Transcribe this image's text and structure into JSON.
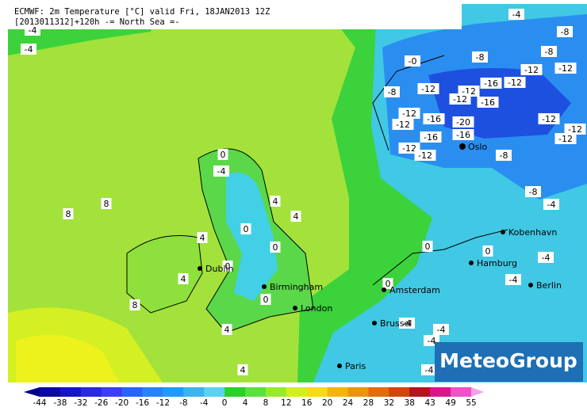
{
  "header": {
    "line1": "ECMWF: 2m Temperature [°C] valid Fri, 18JAN2013 12Z",
    "line2": "[2013011312]+120h  -= North Sea =-"
  },
  "logo": "MeteoGroup",
  "cities": [
    "Dublin",
    "Birmingham",
    "London",
    "Amsterdam",
    "Brussel",
    "Paris",
    "Hamburg",
    "Kobenhavn",
    "Berlin",
    "Oslo"
  ],
  "contour_labels": [
    "-4",
    "-4",
    "8",
    "8",
    "8",
    "0",
    "-4",
    "4",
    "4",
    "4",
    "0",
    "0",
    "0",
    "4",
    "0",
    "4",
    "4",
    "0",
    "0",
    "0",
    "-4",
    "-8",
    "-8",
    "-0",
    "-8",
    "-12",
    "-12",
    "-16",
    "-12",
    "-8",
    "-12",
    "-12",
    "-16",
    "-12",
    "-12",
    "-12",
    "-16",
    "-20",
    "-16",
    "-16",
    "-12",
    "-12",
    "-8",
    "-12",
    "-12",
    "-12",
    "-8",
    "-4",
    "-4",
    "-4",
    "-4",
    "-4",
    "-4",
    "-4"
  ],
  "colorbar": {
    "labels": [
      "-44",
      "-38",
      "-32",
      "-26",
      "-20",
      "-16",
      "-12",
      "-8",
      "-4",
      "0",
      "4",
      "8",
      "12",
      "16",
      "20",
      "24",
      "28",
      "32",
      "38",
      "43",
      "49",
      "55"
    ],
    "colors": [
      "#00008c",
      "#0a0aa0",
      "#1414c8",
      "#2828e6",
      "#3c3cff",
      "#2864ff",
      "#2882ff",
      "#1e9bff",
      "#3cb4f0",
      "#5ad2f0",
      "#28d228",
      "#5ae13c",
      "#96eb28",
      "#d2f01e",
      "#f5dc14",
      "#f5b40a",
      "#eb960a",
      "#e16e0a",
      "#d2460a",
      "#b4141e",
      "#dc148c",
      "#f050c8",
      "#f5a0e6"
    ]
  }
}
